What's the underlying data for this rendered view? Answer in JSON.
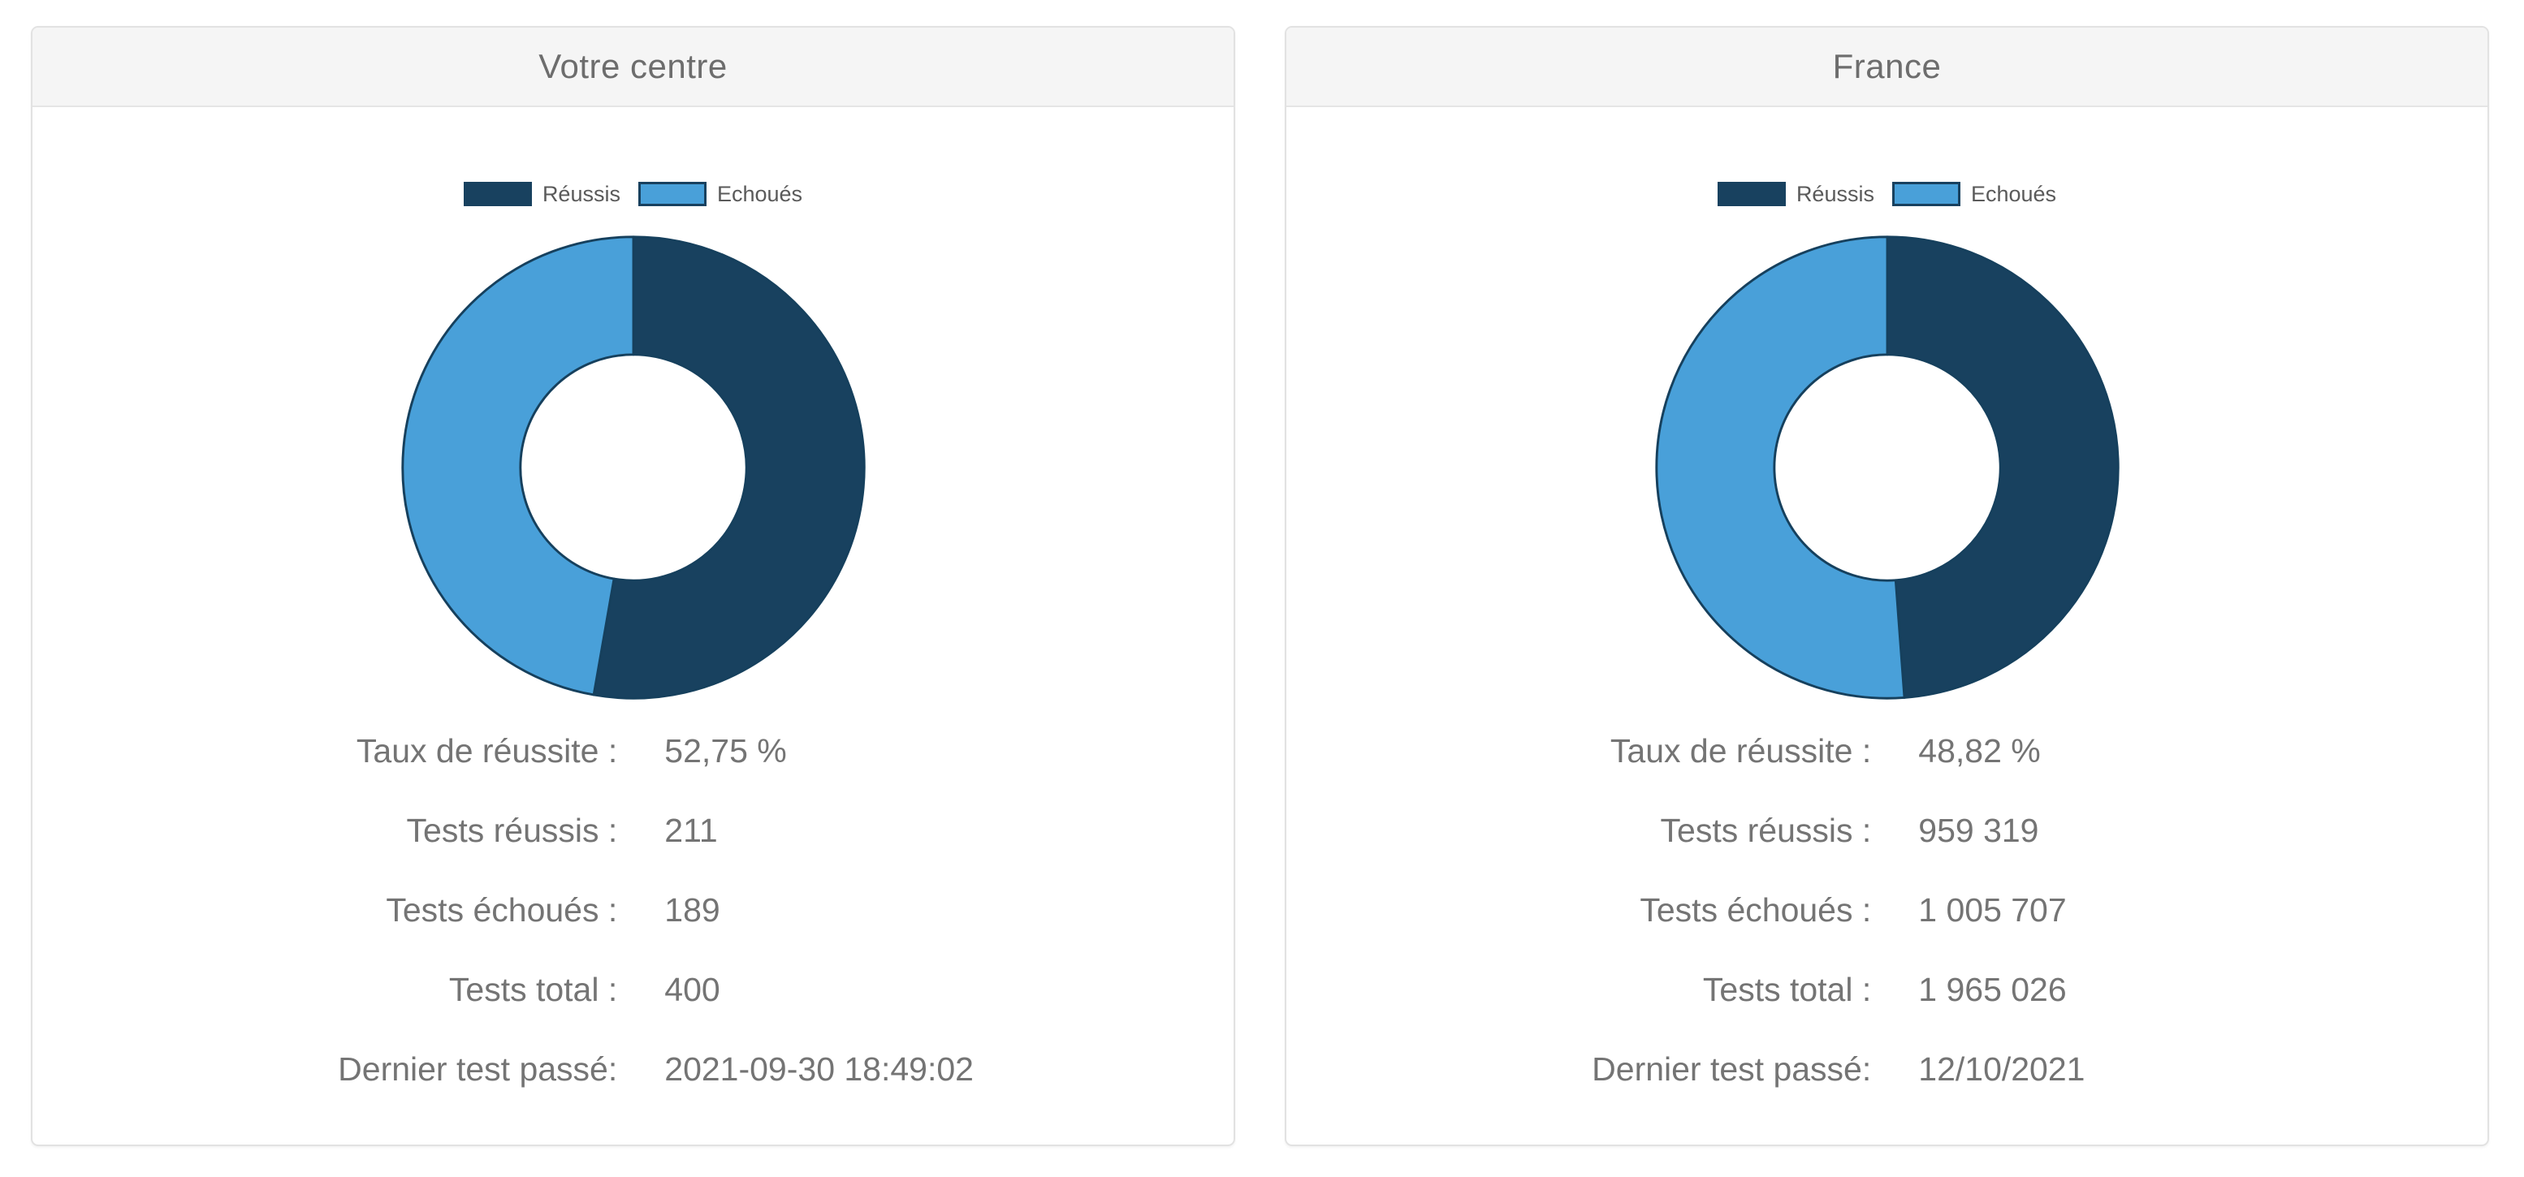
{
  "colors": {
    "slice_reussis": "#18415f",
    "slice_echoues": "#49a0d9",
    "slice_stroke": "#16405d",
    "panel_border": "#e2e2e2",
    "panel_heading_bg": "#f5f5f5",
    "heading_text": "#6d6d6d",
    "stats_text": "#747474",
    "legend_text": "#5a5a5a"
  },
  "donut_geometry": {
    "outer_radius": 292,
    "inner_radius": 143,
    "stroke_width": 3
  },
  "panels": [
    {
      "title": "Votre centre",
      "legend": [
        {
          "label": "Réussis",
          "color": "#18415f"
        },
        {
          "label": "Echoués",
          "color": "#49a0d9"
        }
      ],
      "stats": [
        {
          "label": "Taux de réussite :",
          "value": "52,75 %"
        },
        {
          "label": "Tests réussis :",
          "value": "211"
        },
        {
          "label": "Tests échoués :",
          "value": "189"
        },
        {
          "label": "Tests total :",
          "value": "400"
        },
        {
          "label": "Dernier test passé:",
          "value": "2021-09-30 18:49:02"
        }
      ]
    },
    {
      "title": "France",
      "legend": [
        {
          "label": "Réussis",
          "color": "#18415f"
        },
        {
          "label": "Echoués",
          "color": "#49a0d9"
        }
      ],
      "stats": [
        {
          "label": "Taux de réussite :",
          "value": "48,82 %"
        },
        {
          "label": "Tests réussis :",
          "value": "959 319"
        },
        {
          "label": "Tests échoués :",
          "value": "1 005 707"
        },
        {
          "label": "Tests total :",
          "value": "1 965 026"
        },
        {
          "label": "Dernier test passé:",
          "value": "12/10/2021"
        }
      ]
    }
  ],
  "chart_data": [
    {
      "type": "pie",
      "subtype": "donut",
      "title": "Votre centre",
      "labels": [
        "Réussis",
        "Echoués"
      ],
      "values": [
        211,
        189
      ],
      "percentages": [
        52.75,
        47.25
      ],
      "colors": [
        "#18415f",
        "#49a0d9"
      ],
      "start_angle": "top",
      "direction": "clockwise",
      "inner_radius_ratio": 0.49,
      "legend_position": "top"
    },
    {
      "type": "pie",
      "subtype": "donut",
      "title": "France",
      "labels": [
        "Réussis",
        "Echoués"
      ],
      "values": [
        959319,
        1005707
      ],
      "percentages": [
        48.82,
        51.18
      ],
      "colors": [
        "#18415f",
        "#49a0d9"
      ],
      "start_angle": "top",
      "direction": "clockwise",
      "inner_radius_ratio": 0.49,
      "legend_position": "top"
    }
  ]
}
